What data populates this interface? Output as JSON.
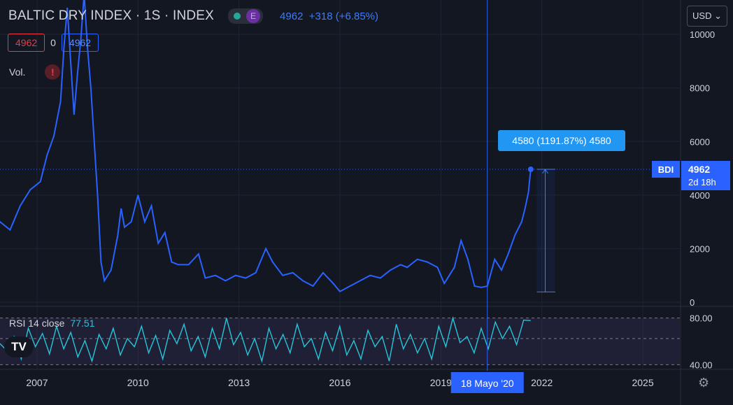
{
  "header": {
    "title": "BALTIC DRY INDEX · 1S · INDEX",
    "badge_e": "E",
    "last": "4962",
    "change": "+318 (+6.85%)"
  },
  "ohlc": {
    "sell": "4962",
    "spread": "0",
    "buy": "4962"
  },
  "volume_label": "Vol.",
  "warning_glyph": "!",
  "currency_menu": "USD ⌄",
  "price_label": {
    "symbol": "BDI",
    "value": "4962",
    "countdown": "2d 18h"
  },
  "measure_label": "4580 (1191.87%) 4580",
  "crosshair_date": "18 Mayo '20",
  "rsi": {
    "label": "RSI 14 close",
    "value": "77.51"
  },
  "logo_text": "TV",
  "colors": {
    "line": "#2962ff",
    "rsi": "#26c6da",
    "background": "#131722",
    "accent": "#2962ff"
  },
  "chart_data": {
    "type": "line",
    "title": "BALTIC DRY INDEX",
    "series": [
      {
        "values": [
          [
            2005.0,
            2200
          ],
          [
            2005.3,
            2600
          ],
          [
            2005.6,
            2300
          ],
          [
            2005.9,
            3000
          ],
          [
            2006.2,
            2700
          ],
          [
            2006.5,
            3600
          ],
          [
            2006.8,
            4200
          ],
          [
            2007.1,
            4500
          ],
          [
            2007.3,
            5500
          ],
          [
            2007.5,
            6200
          ],
          [
            2007.7,
            7500
          ],
          [
            2007.8,
            9500
          ],
          [
            2007.9,
            11000
          ],
          [
            2008.0,
            9000
          ],
          [
            2008.1,
            7000
          ],
          [
            2008.2,
            8500
          ],
          [
            2008.3,
            9800
          ],
          [
            2008.4,
            11500
          ],
          [
            2008.5,
            9500
          ],
          [
            2008.6,
            8000
          ],
          [
            2008.7,
            6000
          ],
          [
            2008.8,
            4000
          ],
          [
            2008.9,
            1500
          ],
          [
            2009.0,
            800
          ],
          [
            2009.2,
            1200
          ],
          [
            2009.4,
            2500
          ],
          [
            2009.5,
            3500
          ],
          [
            2009.6,
            2800
          ],
          [
            2009.8,
            3000
          ],
          [
            2010.0,
            4000
          ],
          [
            2010.2,
            3000
          ],
          [
            2010.4,
            3600
          ],
          [
            2010.6,
            2200
          ],
          [
            2010.8,
            2600
          ],
          [
            2011.0,
            1500
          ],
          [
            2011.2,
            1400
          ],
          [
            2011.5,
            1400
          ],
          [
            2011.8,
            1800
          ],
          [
            2012.0,
            900
          ],
          [
            2012.3,
            1000
          ],
          [
            2012.6,
            800
          ],
          [
            2012.9,
            1000
          ],
          [
            2013.2,
            900
          ],
          [
            2013.5,
            1100
          ],
          [
            2013.8,
            2000
          ],
          [
            2014.0,
            1500
          ],
          [
            2014.3,
            1000
          ],
          [
            2014.6,
            1100
          ],
          [
            2014.9,
            800
          ],
          [
            2015.2,
            600
          ],
          [
            2015.5,
            1100
          ],
          [
            2015.8,
            700
          ],
          [
            2016.0,
            400
          ],
          [
            2016.3,
            600
          ],
          [
            2016.6,
            800
          ],
          [
            2016.9,
            1000
          ],
          [
            2017.2,
            900
          ],
          [
            2017.5,
            1200
          ],
          [
            2017.8,
            1400
          ],
          [
            2018.0,
            1300
          ],
          [
            2018.3,
            1600
          ],
          [
            2018.6,
            1500
          ],
          [
            2018.9,
            1300
          ],
          [
            2019.1,
            700
          ],
          [
            2019.4,
            1300
          ],
          [
            2019.6,
            2300
          ],
          [
            2019.8,
            1600
          ],
          [
            2020.0,
            600
          ],
          [
            2020.2,
            550
          ],
          [
            2020.38,
            600
          ],
          [
            2020.6,
            1600
          ],
          [
            2020.8,
            1200
          ],
          [
            2021.0,
            1800
          ],
          [
            2021.2,
            2500
          ],
          [
            2021.4,
            3000
          ],
          [
            2021.5,
            3500
          ],
          [
            2021.6,
            4100
          ],
          [
            2021.67,
            4962
          ]
        ]
      }
    ],
    "y_ticks": [
      "10000",
      "8000",
      "6000",
      "4000",
      "2000",
      "0"
    ],
    "x_ticks": [
      "2007",
      "2010",
      "2013",
      "2016",
      "2019",
      "2022",
      "2025"
    ],
    "ylim": [
      0,
      10500
    ],
    "xlim": [
      2005.9,
      2026.1
    ],
    "rsi_ticks": [
      "80.00",
      "40.00"
    ],
    "rsi_ylim": [
      30,
      90
    ],
    "rsi_values": [
      55,
      48,
      62,
      40,
      70,
      52,
      65,
      45,
      72,
      50,
      66,
      42,
      58,
      38,
      64,
      50,
      70,
      44,
      60,
      52,
      72,
      46,
      63,
      40,
      68,
      55,
      74,
      48,
      62,
      42,
      70,
      50,
      80,
      54,
      66,
      44,
      60,
      38,
      70,
      50,
      64,
      46,
      74,
      52,
      60,
      40,
      66,
      48,
      72,
      44,
      58,
      40,
      68,
      52,
      62,
      38,
      74,
      50,
      64,
      46,
      60,
      40,
      72,
      52,
      80,
      56,
      62,
      46,
      70,
      50,
      76,
      60,
      72,
      54,
      78,
      77.51
    ]
  }
}
